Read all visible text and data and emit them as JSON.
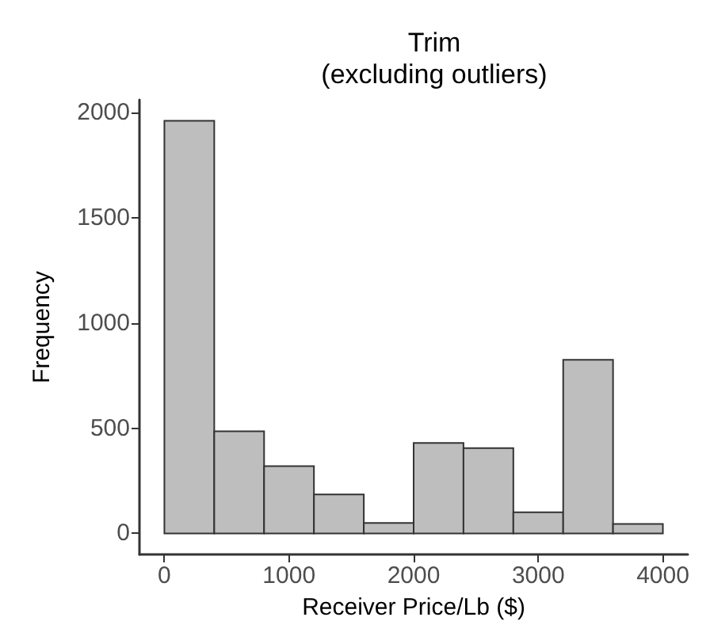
{
  "chart_data": {
    "type": "histogram",
    "title": "Trim\n(excluding outliers)",
    "xlabel": "Receiver Price/Lb ($)",
    "ylabel": "Frequency",
    "bins": [
      0,
      400,
      800,
      1200,
      1600,
      2000,
      2400,
      2800,
      3200,
      3600,
      4000
    ],
    "values": [
      1960,
      485,
      320,
      185,
      50,
      430,
      405,
      100,
      825,
      45
    ],
    "color": "#bebebe",
    "xlim": [
      -200,
      4200
    ],
    "xticks": [
      0,
      1000,
      2000,
      3000,
      4000
    ],
    "ylim": [
      -100,
      2060
    ],
    "yticks": [
      0,
      500,
      1000,
      1500,
      2000
    ],
    "grid": false
  }
}
